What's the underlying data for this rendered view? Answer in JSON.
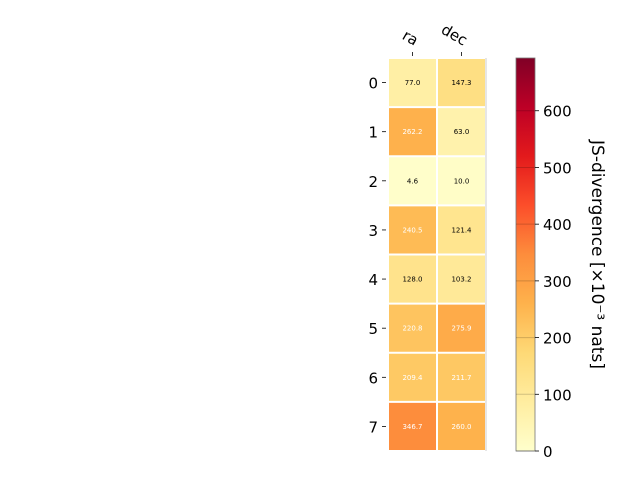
{
  "chart_data": {
    "type": "heatmap",
    "columns": [
      "ra",
      "dec"
    ],
    "rows": [
      "0",
      "1",
      "2",
      "3",
      "4",
      "5",
      "6",
      "7"
    ],
    "values": [
      [
        77.0,
        147.3
      ],
      [
        262.2,
        63.0
      ],
      [
        4.6,
        10.0
      ],
      [
        240.5,
        121.4
      ],
      [
        128.0,
        103.2
      ],
      [
        220.8,
        275.9
      ],
      [
        209.4,
        211.7
      ],
      [
        346.7,
        260.0
      ]
    ],
    "cell_labels": [
      [
        "77.0",
        "147.3"
      ],
      [
        "262.2",
        "63.0"
      ],
      [
        "4.6",
        "10.0"
      ],
      [
        "240.5",
        "121.4"
      ],
      [
        "128.0",
        "103.2"
      ],
      [
        "220.8",
        "275.9"
      ],
      [
        "209.4",
        "211.7"
      ],
      [
        "346.7",
        "260.0"
      ]
    ],
    "colorbar": {
      "label": "JS-divergence [×10⁻³ nats]",
      "range": [
        0,
        693
      ],
      "ticks": [
        0,
        100,
        200,
        300,
        400,
        500,
        600
      ],
      "colormap": "YlOrRd",
      "colors": [
        "#ffffcc",
        "#ffeda0",
        "#fed976",
        "#feb24c",
        "#fd8d3c",
        "#fc4e2a",
        "#e31a1c",
        "#bd0026",
        "#800026"
      ]
    },
    "label_color_threshold": 200
  }
}
